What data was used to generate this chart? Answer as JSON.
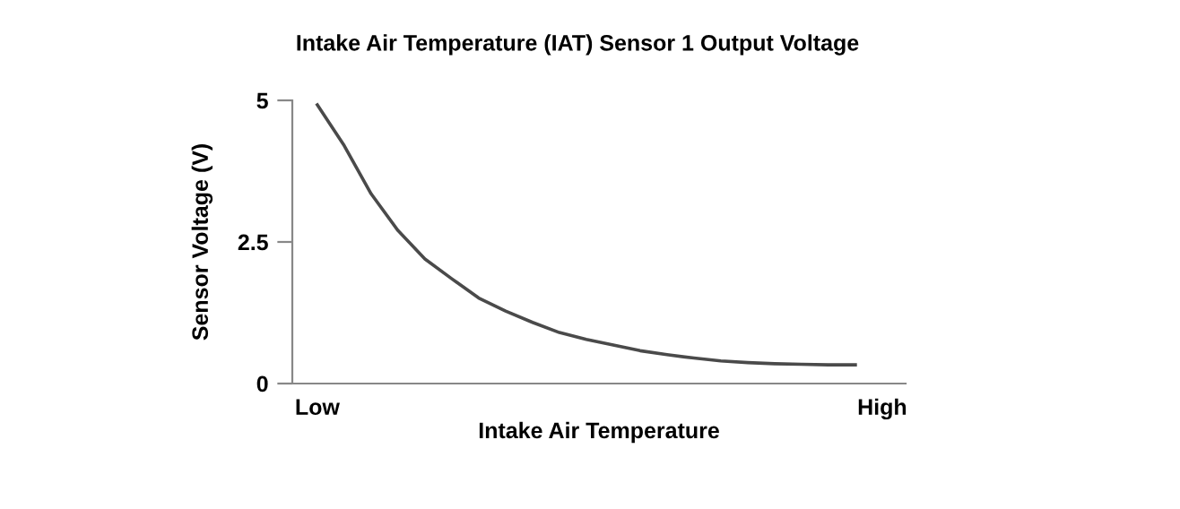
{
  "chart_data": {
    "type": "line",
    "title": "Intake Air Temperature (IAT) Sensor 1 Output Voltage",
    "xlabel": "Intake Air Temperature",
    "ylabel": "Sensor Voltage (V)",
    "categories": [
      "Low",
      null,
      null,
      null,
      null,
      null,
      null,
      null,
      null,
      null,
      null,
      null,
      null,
      null,
      null,
      null,
      null,
      null,
      null,
      null,
      null,
      "High"
    ],
    "series": [
      {
        "color": "#4a4a4a",
        "values": [
          4.92,
          4.2,
          3.35,
          2.7,
          2.2,
          1.85,
          1.51,
          1.28,
          1.08,
          0.9,
          0.78,
          0.68,
          0.58,
          0.51,
          0.45,
          0.4,
          0.37,
          0.35,
          0.34,
          0.33,
          0.33,
          null
        ]
      }
    ],
    "ylim": [
      0,
      5
    ],
    "yticks": [
      0,
      2.5,
      5
    ],
    "grid": false,
    "legend": false,
    "marker": "none",
    "line_style": "solid"
  }
}
